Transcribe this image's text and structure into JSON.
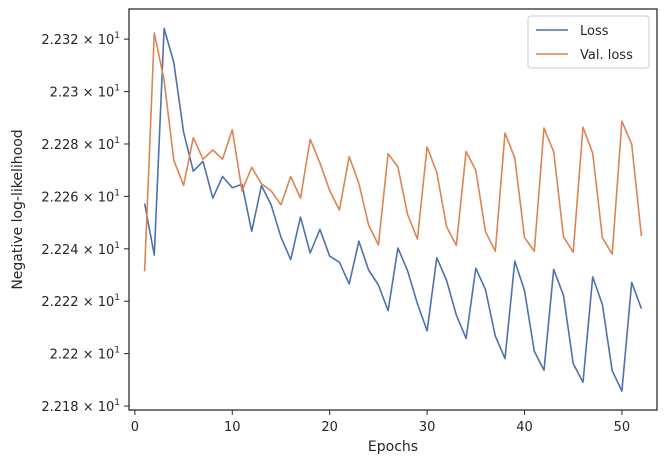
{
  "chart_data": {
    "type": "line",
    "xlabel": "Epochs",
    "ylabel": "Negative log-likelihood",
    "xlim": [
      -0.6,
      53.6
    ],
    "ylim": [
      22.1785,
      22.3315
    ],
    "x_ticks": [
      0,
      10,
      20,
      30,
      40,
      50
    ],
    "y_ticks": [
      {
        "value": 22.18,
        "mantissa": "2.218",
        "exponent": "1"
      },
      {
        "value": 22.2,
        "mantissa": "2.22",
        "exponent": "1"
      },
      {
        "value": 22.22,
        "mantissa": "2.222",
        "exponent": "1"
      },
      {
        "value": 22.24,
        "mantissa": "2.224",
        "exponent": "1"
      },
      {
        "value": 22.26,
        "mantissa": "2.226",
        "exponent": "1"
      },
      {
        "value": 22.28,
        "mantissa": "2.228",
        "exponent": "1"
      },
      {
        "value": 22.3,
        "mantissa": "2.23",
        "exponent": "1"
      },
      {
        "value": 22.32,
        "mantissa": "2.232",
        "exponent": "1"
      }
    ],
    "legend_position": "top-right",
    "grid": false,
    "x": [
      1,
      2,
      3,
      4,
      5,
      6,
      7,
      8,
      9,
      10,
      11,
      12,
      13,
      14,
      15,
      16,
      17,
      18,
      19,
      20,
      21,
      22,
      23,
      24,
      25,
      26,
      27,
      28,
      29,
      30,
      31,
      32,
      33,
      34,
      35,
      36,
      37,
      38,
      39,
      40,
      41,
      42,
      43,
      44,
      45,
      46,
      47,
      48,
      49,
      50,
      51,
      52
    ],
    "series": [
      {
        "name": "Loss",
        "color": "#4c72b0",
        "values": [
          22.2573,
          22.2376,
          22.3241,
          22.3111,
          22.2845,
          22.2696,
          22.2734,
          22.2593,
          22.2676,
          22.2633,
          22.2646,
          22.2467,
          22.2641,
          22.2567,
          22.2444,
          22.2359,
          22.2521,
          22.2384,
          22.2474,
          22.2372,
          22.2349,
          22.2266,
          22.2429,
          22.2319,
          22.2262,
          22.2164,
          22.2403,
          22.2316,
          22.2191,
          22.2087,
          22.2366,
          22.2279,
          22.2148,
          22.2058,
          22.2326,
          22.2244,
          22.2067,
          22.1981,
          22.2353,
          22.2241,
          22.2009,
          22.1937,
          22.2322,
          22.2222,
          22.1962,
          22.1891,
          22.2293,
          22.2187,
          22.1935,
          22.1857,
          22.2272,
          22.2172
        ]
      },
      {
        "name": "Val. loss",
        "color": "#dd8452",
        "values": [
          22.2314,
          22.3224,
          22.3043,
          22.2738,
          22.2642,
          22.2824,
          22.2742,
          22.2777,
          22.2742,
          22.2854,
          22.2621,
          22.2711,
          22.2648,
          22.2621,
          22.2568,
          22.2676,
          22.2593,
          22.2818,
          22.2728,
          22.2622,
          22.2548,
          22.2752,
          22.2649,
          22.2491,
          22.2415,
          22.2763,
          22.2712,
          22.2531,
          22.2437,
          22.2789,
          22.2691,
          22.2484,
          22.2413,
          22.2771,
          22.27,
          22.2465,
          22.2391,
          22.2842,
          22.2746,
          22.2443,
          22.2391,
          22.2861,
          22.277,
          22.2446,
          22.2387,
          22.2864,
          22.2765,
          22.2442,
          22.238,
          22.2887,
          22.2799,
          22.2449
        ]
      }
    ]
  }
}
